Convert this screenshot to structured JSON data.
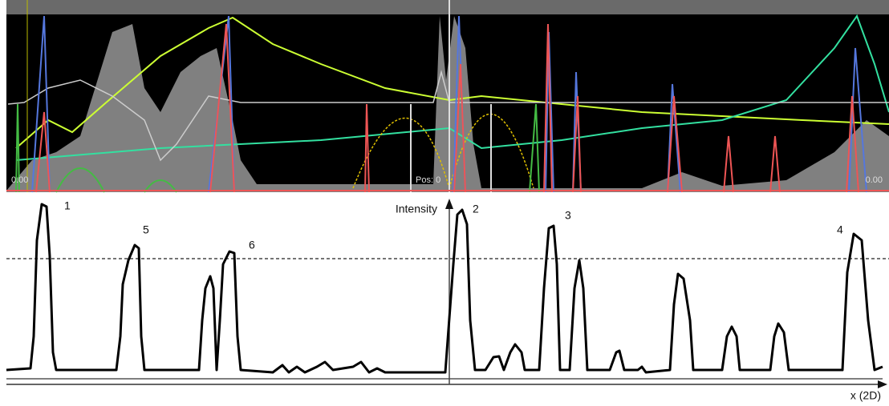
{
  "top_panel": {
    "left_label": "0.00",
    "center_label": "Pos: 0",
    "right_label": "0.00"
  },
  "profile": {
    "y_axis_label": "Intensity",
    "x_axis_label": "x (2D)",
    "peaks": [
      "1",
      "5",
      "6",
      "2",
      "3",
      "4"
    ]
  }
}
